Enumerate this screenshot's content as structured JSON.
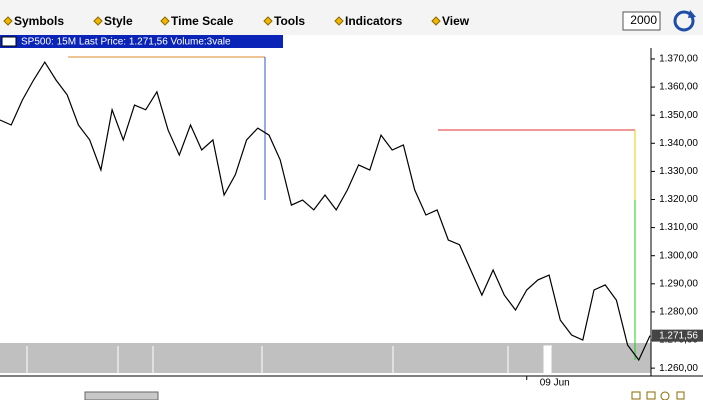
{
  "toolbar": {
    "menus": [
      "Symbols",
      "Style",
      "Time Scale",
      "Tools",
      "Indicators",
      "View"
    ],
    "bars_input": "2000"
  },
  "chart_header": "SP500: 15M Last Price: 1.271,56 Volume:3vale",
  "chart_data": {
    "type": "line",
    "categories": [
      null,
      null,
      null,
      null,
      null,
      null,
      null,
      null,
      null,
      null,
      null,
      null,
      null,
      null,
      null,
      null,
      null,
      null,
      null,
      null,
      null,
      null,
      null,
      null,
      null,
      null,
      null,
      null,
      null,
      null,
      null,
      null,
      null,
      null,
      null,
      null,
      null,
      null,
      null,
      null,
      null,
      null,
      null,
      null,
      null,
      null,
      null,
      "09 Jun",
      null,
      null,
      null,
      null,
      null,
      null,
      null,
      null,
      null,
      null,
      null
    ],
    "values": [
      1348.3,
      1346.5,
      1355.4,
      1362.5,
      1368.9,
      1362.5,
      1357.2,
      1346.5,
      1341.2,
      1330.5,
      1351.9,
      1341.2,
      1353.6,
      1351.9,
      1358.3,
      1344.7,
      1335.8,
      1346.5,
      1337.6,
      1341.2,
      1321.6,
      1328.8,
      1341.2,
      1345.4,
      1342.9,
      1334.1,
      1318.0,
      1319.8,
      1316.3,
      1321.6,
      1316.3,
      1323.4,
      1332.3,
      1330.5,
      1342.9,
      1337.6,
      1339.4,
      1323.4,
      1314.5,
      1316.3,
      1305.6,
      1303.9,
      1294.9,
      1286.0,
      1294.9,
      1286.0,
      1280.7,
      1287.8,
      1291.4,
      1293.1,
      1277.1,
      1271.8,
      1270.0,
      1287.8,
      1289.6,
      1284.2,
      1268.2,
      1262.9,
      1271.56
    ],
    "color": "#000000",
    "ylim": [
      1257.2,
      1373.9
    ],
    "yticks": [
      {
        "value": 1260,
        "label": "1.260,00"
      },
      {
        "value": 1270,
        "label": "1.270,00"
      },
      {
        "value": 1280,
        "label": "1.280,00"
      },
      {
        "value": 1290,
        "label": "1.290,00"
      },
      {
        "value": 1300,
        "label": "1.300,00"
      },
      {
        "value": 1310,
        "label": "1.310,00"
      },
      {
        "value": 1320,
        "label": "1.320,00"
      },
      {
        "value": 1330,
        "label": "1.330,00"
      },
      {
        "value": 1340,
        "label": "1.340,00"
      },
      {
        "value": 1350,
        "label": "1.350,00"
      },
      {
        "value": 1360,
        "label": "1.360,00"
      },
      {
        "value": 1370,
        "label": "1.370,00"
      }
    ],
    "last_price": {
      "value": 1271.56,
      "label": "1.271,56"
    }
  }
}
